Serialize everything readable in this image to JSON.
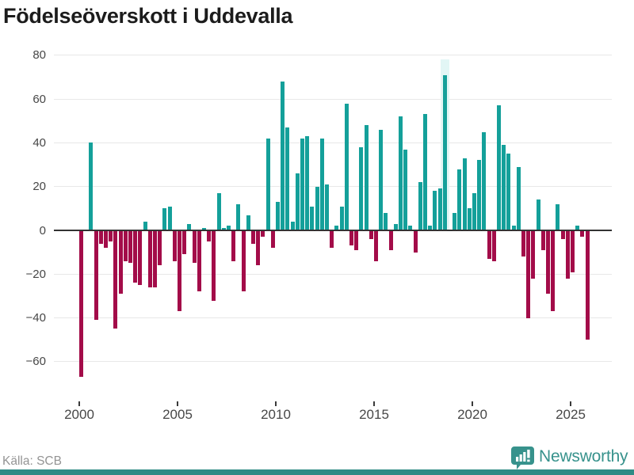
{
  "title": "Födelseöverskott i Uddevalla",
  "footer": {
    "source": "Källa: SCB"
  },
  "brand": {
    "name": "Newsworthy",
    "icon": "newsworthy-speech-bubble-barchart-icon"
  },
  "colors": {
    "positive_bar": "#14a09a",
    "negative_bar": "#a30c49",
    "highlight_band": "#e2f6f5",
    "gridline": "#e8e8e8",
    "zero_line": "#333333",
    "tick_label": "#474747",
    "title": "#1c1c1c",
    "source_text": "#949494",
    "brand_teal": "#37928c",
    "bottom_bar": "#2e8b85"
  },
  "chart_data": {
    "type": "bar",
    "title": "Födelseöverskott i Uddevalla",
    "x_unit": "quarter",
    "start_year": 2000,
    "categories_note": "104 quarterly values, 2000 Q1 through 2025 Q4",
    "values": [
      -67,
      0,
      40,
      -41,
      -6,
      -8,
      -5,
      -45,
      -29,
      -14,
      -15,
      -24,
      -25,
      4,
      -26,
      -26,
      -16,
      10,
      11,
      -14,
      -37,
      -11,
      3,
      -15,
      -28,
      1,
      -5,
      -32,
      17,
      1,
      2,
      -14,
      12,
      -28,
      7,
      -6,
      -16,
      -3,
      42,
      -8,
      13,
      68,
      47,
      4,
      26,
      42,
      43,
      11,
      20,
      42,
      21,
      -8,
      2,
      11,
      58,
      -7,
      -9,
      38,
      48,
      -4,
      -14,
      46,
      8,
      -9,
      3,
      52,
      37,
      2,
      -10,
      22,
      53,
      2,
      18,
      19,
      71,
      0,
      8,
      28,
      33,
      10,
      17,
      32,
      45,
      -13,
      -14,
      57,
      39,
      35,
      2,
      29,
      -12,
      -40,
      -22,
      14,
      -9,
      -29,
      -37,
      12,
      -4,
      -22,
      -19,
      2,
      -3,
      -50
    ],
    "highlight_index": 74,
    "x_ticks": [
      2000,
      2005,
      2010,
      2015,
      2020,
      2025
    ],
    "y_ticks": [
      80,
      60,
      40,
      20,
      0,
      -20,
      -40,
      -60
    ],
    "y_tick_labels": [
      "80",
      "60",
      "40",
      "20",
      "0",
      "−20",
      "−40",
      "−60"
    ],
    "ylim": [
      -70,
      80
    ],
    "xlabel": "",
    "ylabel": "",
    "grid": "horizontal",
    "legend": "none"
  }
}
